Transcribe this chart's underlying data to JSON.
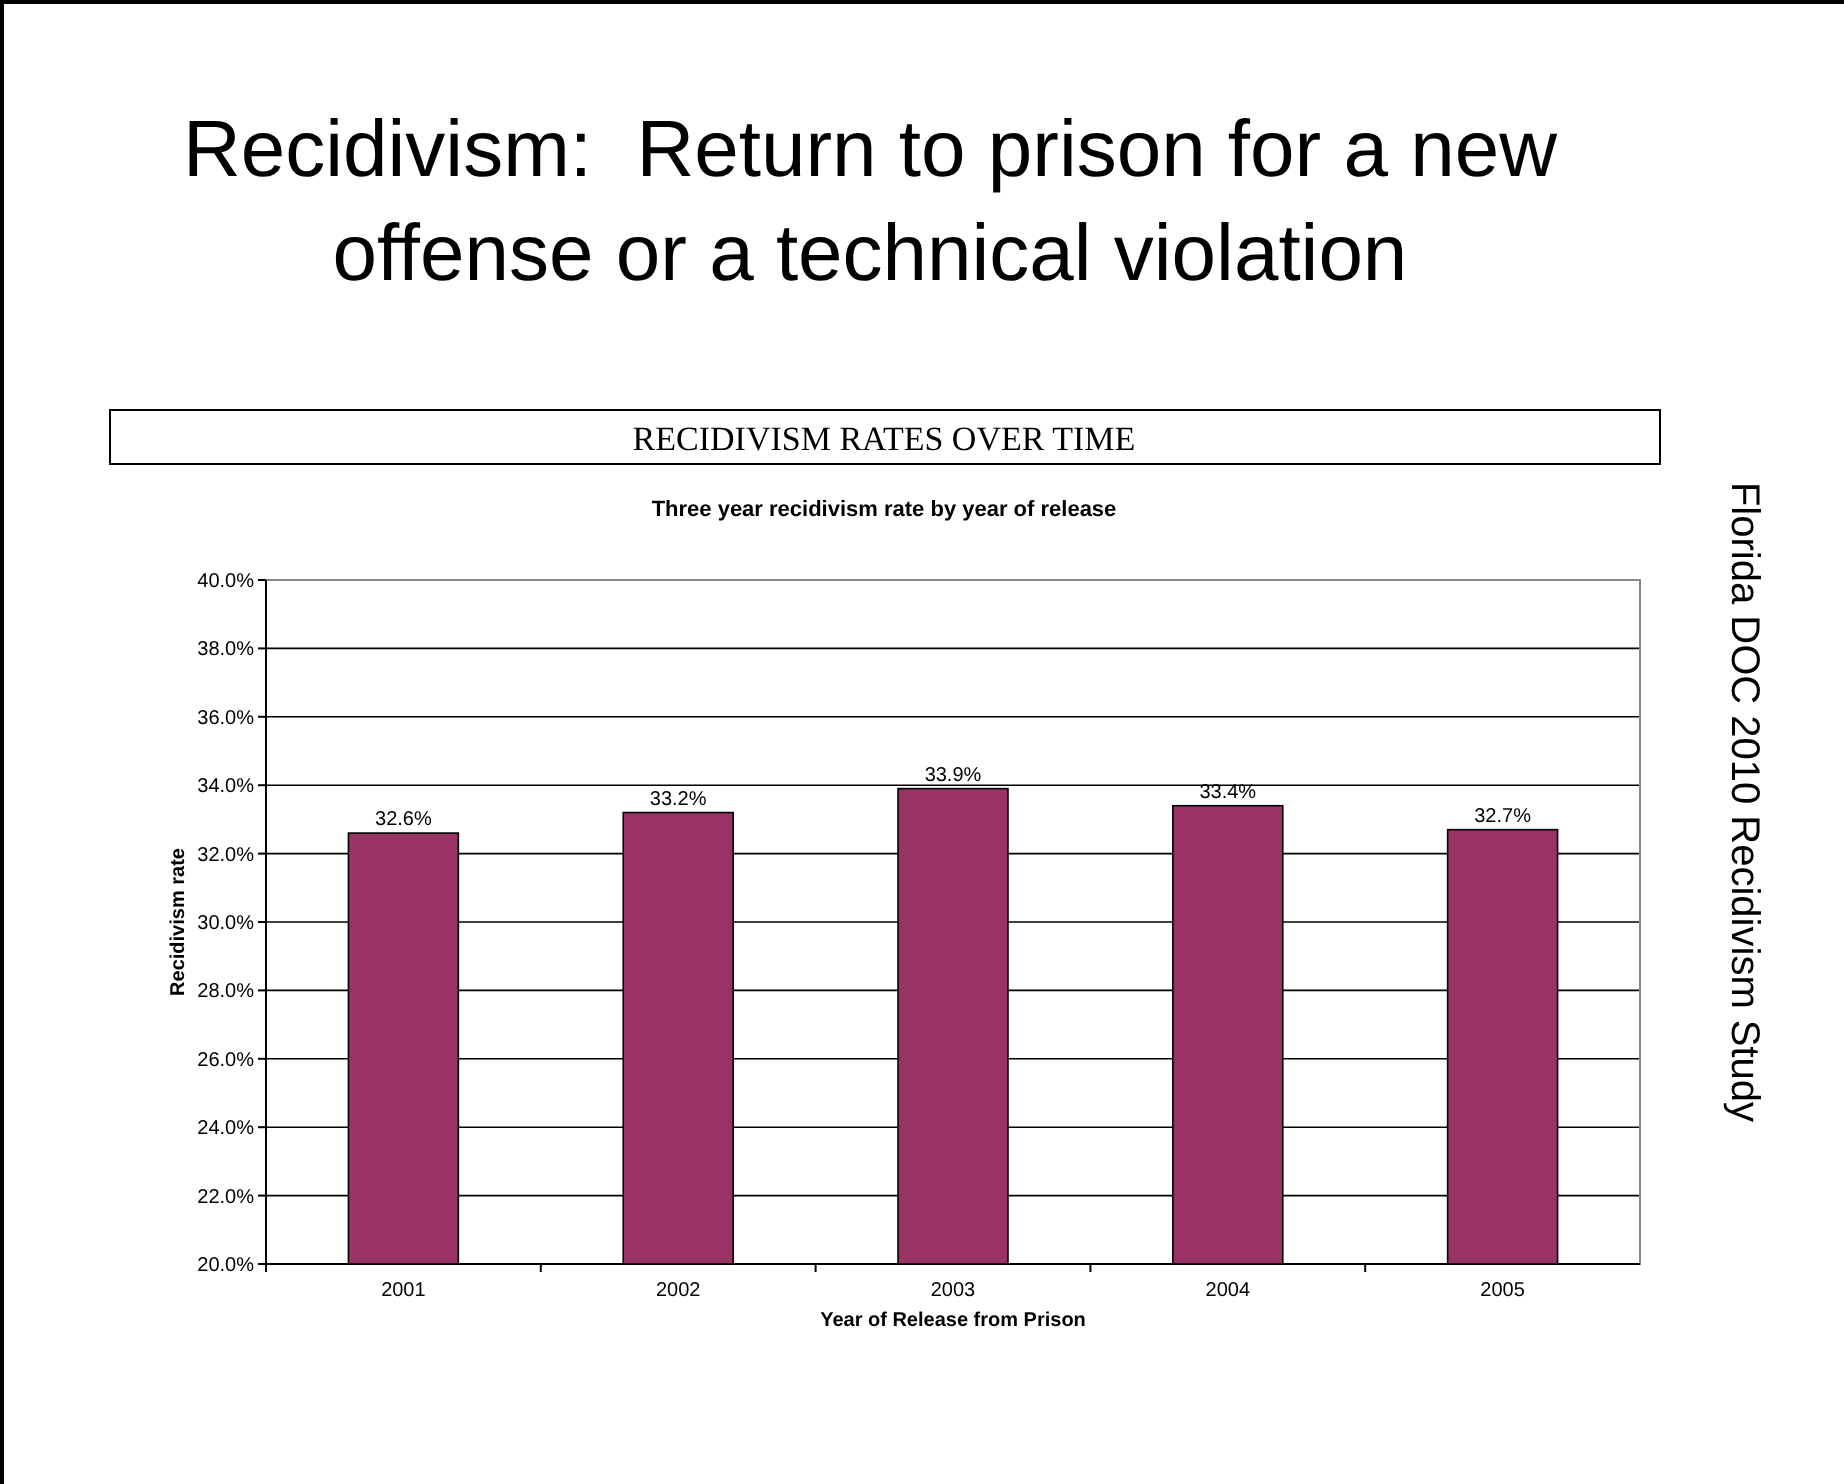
{
  "chart_data": {
    "type": "bar",
    "title": "Recidivism:  Return to prison for a new offense or a technical violation",
    "subtitle": "RECIDIVISM RATES OVER TIME",
    "annotations": [
      "Three year recidivism rate by year of release",
      "Florida DOC 2010 Recidivism Study"
    ],
    "xlabel": "Year of Release from Prison",
    "ylabel": "Recidivism rate",
    "categories": [
      "2001",
      "2002",
      "2003",
      "2004",
      "2005"
    ],
    "values": [
      32.6,
      33.2,
      33.9,
      33.4,
      32.7
    ],
    "value_labels": [
      "32.6%",
      "33.2%",
      "33.9%",
      "33.4%",
      "32.7%"
    ],
    "color": "#993366",
    "ylim": [
      20,
      40
    ],
    "yticks": [
      {
        "value": 20,
        "label": "20.0%"
      },
      {
        "value": 22,
        "label": "22.0%"
      },
      {
        "value": 24,
        "label": "24.0%"
      },
      {
        "value": 26,
        "label": "26.0%"
      },
      {
        "value": 28,
        "label": "28.0%"
      },
      {
        "value": 30,
        "label": "30.0%"
      },
      {
        "value": 32,
        "label": "32.0%"
      },
      {
        "value": 34,
        "label": "34.0%"
      },
      {
        "value": 36,
        "label": "36.0%"
      },
      {
        "value": 38,
        "label": "38.0%"
      },
      {
        "value": 40,
        "label": "40.0%"
      }
    ],
    "grid": "y"
  }
}
